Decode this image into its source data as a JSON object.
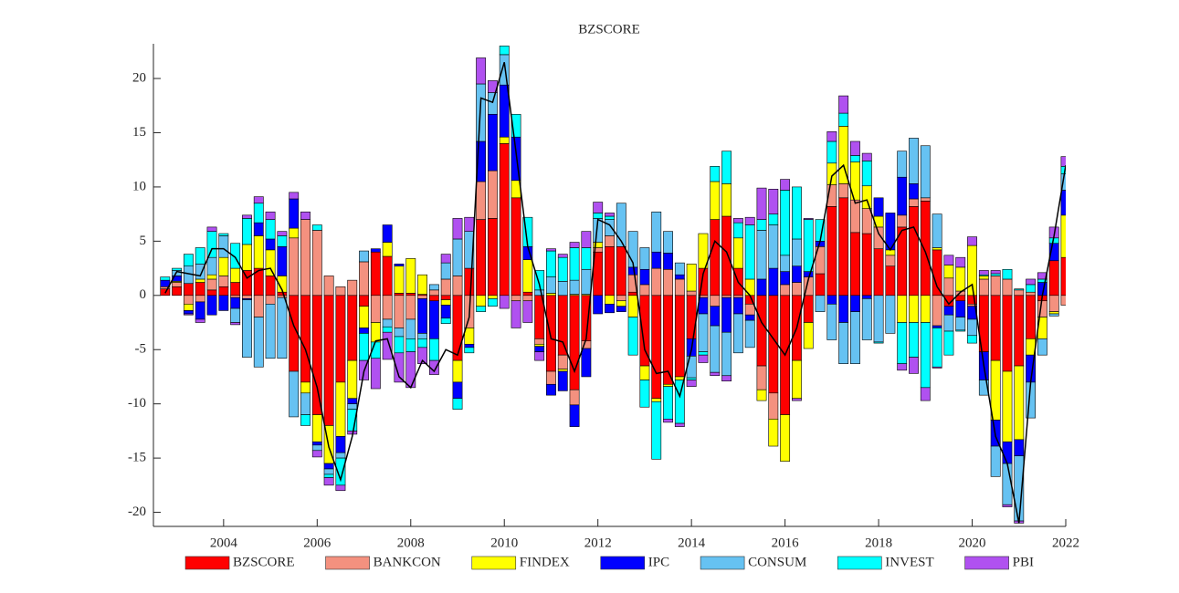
{
  "chart_data": {
    "type": "bar",
    "stacked": true,
    "title": "BZSCORE",
    "x": [
      2002.75,
      2003,
      2003.25,
      2003.5,
      2003.75,
      2004,
      2004.25,
      2004.5,
      2004.75,
      2005,
      2005.25,
      2005.5,
      2005.75,
      2006,
      2006.25,
      2006.5,
      2006.75,
      2007,
      2007.25,
      2007.5,
      2007.75,
      2008,
      2008.25,
      2008.5,
      2008.75,
      2009,
      2009.25,
      2009.5,
      2009.75,
      2010,
      2010.25,
      2010.5,
      2010.75,
      2011,
      2011.25,
      2011.5,
      2011.75,
      2012,
      2012.25,
      2012.5,
      2012.75,
      2013,
      2013.25,
      2013.5,
      2013.75,
      2014,
      2014.25,
      2014.5,
      2014.75,
      2015,
      2015.25,
      2015.5,
      2015.75,
      2016,
      2016.25,
      2016.5,
      2016.75,
      2017,
      2017.25,
      2017.5,
      2017.75,
      2018,
      2018.25,
      2018.5,
      2018.75,
      2019,
      2019.25,
      2019.5,
      2019.75,
      2020,
      2020.25,
      2020.5,
      2020.75,
      2021,
      2021.25,
      2021.5,
      2021.75,
      2022
    ],
    "series": [
      {
        "name": "BZSCORE",
        "color": "#ff0000",
        "values": [
          0.6,
          0.8,
          1.1,
          1.2,
          0.5,
          0.8,
          1.2,
          2.3,
          2.5,
          1.8,
          0.3,
          -7,
          -8,
          -11,
          -12,
          -8,
          -6,
          -1,
          4,
          3.6,
          0.2,
          0.2,
          0.1,
          -0.5,
          -0.4,
          -6,
          2.5,
          7,
          7.1,
          14,
          9,
          0.3,
          -4,
          -7,
          -5.5,
          -8.7,
          -4.2,
          4,
          4.5,
          4.5,
          0.3,
          -6.5,
          -9.5,
          -8.2,
          -7.5,
          -4,
          2.5,
          7,
          7.3,
          2.5,
          -0.8,
          -6.5,
          -9,
          -11,
          -6,
          -2.5,
          2,
          8.2,
          9,
          5.8,
          5.7,
          4.3,
          2.7,
          6.3,
          8.2,
          8.7,
          4.2,
          -1,
          -0.5,
          -0.8,
          -5.2,
          -6,
          -7,
          -6.5,
          -4,
          -0.5,
          3.2,
          3.5
        ]
      },
      {
        "name": "BANKCON",
        "color": "#f4917f",
        "values": [
          0.2,
          0.4,
          -0.8,
          -0.6,
          1.0,
          1.0,
          -0.2,
          -0.3,
          -2,
          -0.8,
          -0.2,
          5.3,
          7,
          6,
          1.8,
          0.8,
          1.4,
          3.1,
          -2.5,
          -2.2,
          -3,
          -2.2,
          -0.3,
          0.5,
          1.5,
          1.8,
          -3,
          3.5,
          4.4,
          0,
          -0.5,
          -0.5,
          -0.5,
          -1.2,
          -1.3,
          -1.4,
          -0.7,
          0.4,
          1,
          -0.5,
          1.6,
          1,
          2.5,
          2.4,
          1.5,
          0.4,
          -0.2,
          -1,
          -0.2,
          -0.2,
          -1,
          -2.2,
          -2.4,
          1,
          1.2,
          1.7,
          2.5,
          2,
          1.3,
          3,
          2.3,
          2,
          1,
          1.1,
          0.7,
          0.3,
          -2.8,
          1.6,
          0.4,
          -0.2,
          1.5,
          1.8,
          1.5,
          0.5,
          0.3,
          -1.5,
          -1.5,
          -0.9
        ]
      },
      {
        "name": "FINDEX",
        "color": "#ffff00",
        "values": [
          0,
          0.1,
          -0.6,
          0.3,
          0.4,
          1.7,
          1.3,
          2.4,
          3,
          2.4,
          1.5,
          0.9,
          -1,
          -2.5,
          -3.5,
          -5,
          -3.5,
          -2,
          -1.8,
          1.3,
          2.5,
          3.2,
          1.8,
          0,
          -0.5,
          -2,
          -1.5,
          -1,
          -0.3,
          0.6,
          1.6,
          3,
          -0.2,
          0.2,
          -0.2,
          0.1,
          0.1,
          0.5,
          -0.8,
          -0.5,
          -2,
          -1.3,
          -0.3,
          -0.2,
          -0.3,
          2.5,
          3.2,
          3.5,
          3,
          2.8,
          1.5,
          -1,
          -2.5,
          -4.3,
          -3.5,
          -2.4,
          0,
          2,
          5.3,
          3.5,
          2.1,
          1,
          0.5,
          -2.5,
          -2.5,
          -2.5,
          0.2,
          1.2,
          2.2,
          4.6,
          0.3,
          -5.5,
          -6.5,
          -6.8,
          -1.5,
          -2,
          -0.2,
          3.9
        ]
      },
      {
        "name": "IPC",
        "color": "#0000ff",
        "values": [
          0.6,
          0.5,
          -0.3,
          -1.6,
          -1.8,
          -1.4,
          -1,
          -0.1,
          1.2,
          1,
          2.7,
          2.7,
          0,
          -0.3,
          -0.5,
          -1.5,
          -0.5,
          -0.5,
          0.3,
          1.6,
          0.2,
          0,
          -3.2,
          -3.5,
          -1.2,
          -1.5,
          -0.3,
          3.7,
          5.2,
          4.8,
          4,
          1.2,
          -0.5,
          -1,
          -1.8,
          -2,
          -2.6,
          -1.7,
          -0.8,
          -0.5,
          0.7,
          1.4,
          1.5,
          1.5,
          0.4,
          -1.6,
          -1.5,
          -1.8,
          -3.2,
          -1.5,
          -0.5,
          1.5,
          2.5,
          1.2,
          1.5,
          0.5,
          0.5,
          -0.8,
          -2.5,
          -1.5,
          -0.3,
          1.7,
          3.4,
          3.5,
          1.4,
          0,
          -0.2,
          -0.8,
          -1.5,
          -1.2,
          -2.6,
          -2.4,
          -2,
          -1.5,
          -2.5,
          1.2,
          1.6,
          2.3
        ]
      },
      {
        "name": "CONSUM",
        "color": "#66c2f2",
        "values": [
          0,
          0.5,
          1.6,
          1.4,
          1.6,
          2,
          -1.3,
          -5.3,
          -4.6,
          -5,
          -5.6,
          -4.2,
          -2,
          -0.5,
          -0.5,
          -0.5,
          -0.5,
          1,
          0,
          -0.7,
          -0.8,
          -1.8,
          -0.5,
          0.5,
          1.5,
          3.4,
          3.4,
          5.3,
          2,
          2.8,
          0,
          0,
          0.5,
          1.5,
          1.3,
          1.3,
          2.3,
          2.2,
          1.5,
          4,
          3.3,
          2,
          3.7,
          2,
          1.1,
          -2,
          -3.5,
          -4.3,
          -4,
          -3.6,
          -2.5,
          4.5,
          4,
          1.5,
          2.5,
          0,
          -1.5,
          -3.3,
          -3.8,
          -4.8,
          -3.8,
          -4.3,
          -3.5,
          2.4,
          4.2,
          4.8,
          3.1,
          -1.5,
          -1.2,
          -1.5,
          -1.4,
          -2.8,
          -3.8,
          -6,
          -3.3,
          -1.5,
          -0.2,
          1.5
        ]
      },
      {
        "name": "INVEST",
        "color": "#00ffff",
        "values": [
          0.3,
          0.2,
          1.1,
          1.5,
          2.4,
          0.2,
          2.3,
          2.4,
          1.8,
          1.8,
          1,
          0,
          -1,
          0.5,
          -0.3,
          -2.5,
          -2,
          -2.5,
          -1.5,
          -0.5,
          -1.5,
          -1.2,
          -0.8,
          -2,
          -0.5,
          -1,
          -0.5,
          -0.5,
          -0.7,
          0.8,
          2.1,
          2.7,
          1.8,
          2.4,
          2.2,
          3,
          2,
          0.5,
          0.3,
          0,
          -3.5,
          -2.5,
          -5.3,
          -3,
          -4,
          -0.2,
          -0.3,
          1.4,
          3,
          1.4,
          5,
          1,
          1,
          6,
          4.8,
          4.8,
          2,
          2,
          1.2,
          0.6,
          2.3,
          -0.1,
          0,
          -3.8,
          -3.2,
          -6,
          -3.6,
          -2.2,
          -0.1,
          -0.7,
          0.1,
          0.2,
          0.9,
          0.1,
          0.7,
          0.3,
          0.5,
          0.7
        ]
      },
      {
        "name": "PBI",
        "color": "#b051f0",
        "values": [
          0,
          0,
          -0.1,
          -0.3,
          0.4,
          0,
          -0.2,
          0.3,
          0.6,
          0.7,
          0.4,
          0.6,
          0.7,
          -0.6,
          -0.7,
          -0.5,
          -0.3,
          -1.8,
          -2.8,
          -2.5,
          -2.7,
          -3.3,
          -1.5,
          -1.3,
          0.8,
          1.9,
          1.3,
          2.4,
          1.1,
          -1.2,
          -2.5,
          -2,
          -0.8,
          0.2,
          0.3,
          0.5,
          1.5,
          1,
          0.3,
          0,
          0,
          0,
          0,
          -0.3,
          -0.3,
          -0.6,
          -0.7,
          -0.3,
          -0.5,
          0.4,
          0.7,
          2.9,
          2.3,
          1,
          -0.2,
          0.1,
          0,
          0.9,
          1.6,
          1.3,
          0.7,
          0,
          0,
          -0.6,
          -1.5,
          -1.2,
          -0.1,
          0.9,
          0.9,
          0.8,
          0.4,
          0.3,
          -0.2,
          -0.2,
          0.5,
          0.6,
          1,
          0.9
        ]
      }
    ],
    "line": {
      "color": "#000000",
      "values": [
        0.2,
        2.2,
        2,
        1.8,
        4.3,
        4.3,
        3.5,
        1.6,
        2.3,
        2.5,
        0.5,
        -2.8,
        -5,
        -8.5,
        -14,
        -17,
        -13,
        -7,
        -4.2,
        -4,
        -7.5,
        -8.5,
        -6,
        -7,
        -5,
        -5.5,
        -2,
        18.2,
        17.8,
        21.5,
        13.2,
        4.5,
        1,
        -4,
        -4.3,
        -7,
        -4,
        7,
        6.5,
        5,
        3,
        -5,
        -7.2,
        -7,
        -9.3,
        -5,
        2,
        5,
        4,
        1.2,
        0,
        -2.5,
        -4,
        -5.5,
        -3,
        1.5,
        5,
        11,
        12,
        8.5,
        8.8,
        5.7,
        4.2,
        6,
        6.3,
        4,
        0.8,
        -0.8,
        0.3,
        1,
        -6.5,
        -13,
        -15.5,
        -21,
        -8,
        0,
        5.5,
        12
      ]
    },
    "xlim": [
      2002.5,
      2022
    ],
    "xticks": [
      2004,
      2006,
      2008,
      2010,
      2012,
      2014,
      2016,
      2018,
      2020,
      2022
    ],
    "ylim": [
      -21.3,
      23.2
    ],
    "yticks": [
      -20,
      -15,
      -10,
      -5,
      0,
      5,
      10,
      15,
      20
    ],
    "legend": "bottom"
  }
}
